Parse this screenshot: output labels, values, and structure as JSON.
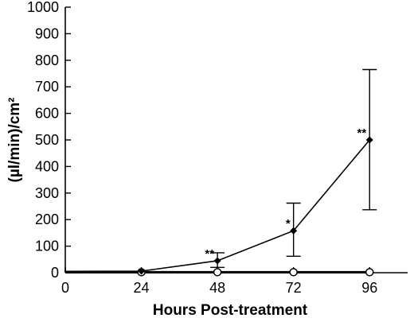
{
  "chart_data": {
    "type": "line",
    "xlabel": "Hours Post-treatment",
    "ylabel": "(µl/min)/cm²",
    "xlim": [
      0,
      108
    ],
    "ylim": [
      0,
      1000
    ],
    "x_ticks": [
      0,
      24,
      48,
      72,
      96
    ],
    "y_ticks": [
      0,
      100,
      200,
      300,
      400,
      500,
      600,
      700,
      800,
      900,
      1000
    ],
    "grid": false,
    "series": [
      {
        "marker": "filled-diamond",
        "x": [
          0,
          24,
          48,
          72,
          96
        ],
        "y": [
          5,
          6,
          45,
          158,
          500
        ],
        "err_low": [
          0,
          0,
          20,
          62,
          237
        ],
        "err_high": [
          0,
          0,
          75,
          262,
          765
        ],
        "annotations": [
          "",
          "",
          "**",
          "*",
          "**"
        ]
      },
      {
        "marker": "open-circle",
        "x": [
          0,
          24,
          48,
          72,
          96
        ],
        "y": [
          2,
          2,
          2,
          2,
          2
        ]
      }
    ]
  }
}
